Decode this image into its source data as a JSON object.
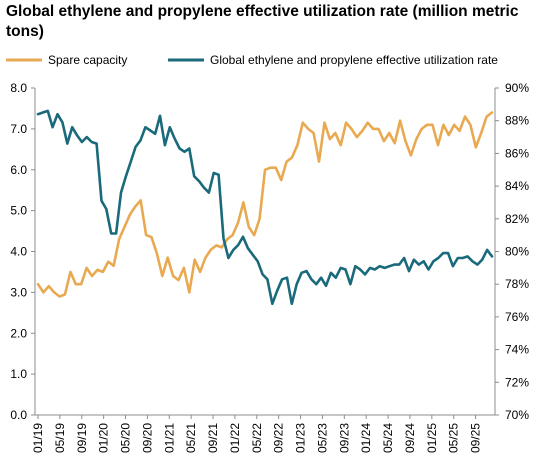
{
  "chart_data": {
    "type": "line",
    "title": "Global ethylene and propylene effective utilization rate (million metric tons)",
    "x_tick_labels": [
      "01/19",
      "05/19",
      "09/19",
      "01/20",
      "05/20",
      "09/20",
      "01/21",
      "05/21",
      "09/21",
      "01/22",
      "05/22",
      "09/22",
      "01/23",
      "05/23",
      "09/23",
      "01/24",
      "05/24",
      "09/24",
      "01/25",
      "05/25",
      "09/25"
    ],
    "x_start": "2019-01",
    "y_left": {
      "ylim": [
        0,
        8
      ],
      "ticks": [
        "0.0",
        "1.0",
        "2.0",
        "3.0",
        "4.0",
        "5.0",
        "6.0",
        "7.0",
        "8.0"
      ]
    },
    "y_right": {
      "ylim": [
        70,
        90
      ],
      "ticks": [
        "70%",
        "72%",
        "74%",
        "76%",
        "78%",
        "80%",
        "82%",
        "84%",
        "86%",
        "88%",
        "90%"
      ]
    },
    "series": [
      {
        "name": "Spare capacity",
        "axis": "left",
        "color": "#E8A950",
        "values": [
          3.2,
          3.0,
          3.15,
          3.0,
          2.9,
          2.95,
          3.5,
          3.2,
          3.2,
          3.6,
          3.4,
          3.55,
          3.5,
          3.75,
          3.65,
          4.3,
          4.6,
          4.9,
          5.1,
          5.25,
          4.4,
          4.35,
          3.95,
          3.4,
          3.85,
          3.4,
          3.3,
          3.6,
          3.0,
          3.8,
          3.5,
          3.85,
          4.05,
          4.15,
          4.1,
          4.3,
          4.4,
          4.7,
          5.2,
          4.6,
          4.4,
          4.8,
          6.0,
          6.05,
          6.05,
          5.75,
          6.2,
          6.3,
          6.6,
          7.15,
          7.0,
          6.9,
          6.2,
          7.15,
          6.75,
          6.9,
          6.6,
          7.15,
          7.0,
          6.8,
          6.95,
          7.15,
          7.0,
          7.0,
          6.7,
          6.9,
          6.65,
          7.2,
          6.7,
          6.35,
          6.75,
          7.0,
          7.1,
          7.1,
          6.6,
          7.1,
          6.85,
          7.1,
          6.95,
          7.3,
          7.1,
          6.55,
          6.9,
          7.3,
          7.4
        ]
      },
      {
        "name": "Global ethylene and propylene effective utilization rate",
        "axis": "right",
        "color": "#1A6A7B",
        "values": [
          88.4,
          88.5,
          88.6,
          87.6,
          88.4,
          87.9,
          86.6,
          87.6,
          87.1,
          86.7,
          87.0,
          86.7,
          86.6,
          83.1,
          82.6,
          81.1,
          81.1,
          83.6,
          84.6,
          85.5,
          86.4,
          86.8,
          87.6,
          87.4,
          87.2,
          88.3,
          86.5,
          87.6,
          86.9,
          86.3,
          86.1,
          86.3,
          84.6,
          84.3,
          83.9,
          83.6,
          84.8,
          84.7,
          80.8,
          79.6,
          80.1,
          80.4,
          80.9,
          80.2,
          79.8,
          79.4,
          78.6,
          78.3,
          76.8,
          77.6,
          78.3,
          78.4,
          76.8,
          78.0,
          78.7,
          78.8,
          78.3,
          78.0,
          78.4,
          77.9,
          78.7,
          78.4,
          79.0,
          78.9,
          78.0,
          79.1,
          78.9,
          78.6,
          79.0,
          78.9,
          79.1,
          79.0,
          79.1,
          79.2,
          79.2,
          79.6,
          78.8,
          79.5,
          79.2,
          79.4,
          78.9,
          79.4,
          79.6,
          79.9,
          79.9,
          79.1,
          79.6,
          79.6,
          79.7,
          79.4,
          79.2,
          79.5,
          80.1,
          79.7
        ]
      }
    ],
    "grid": false,
    "legend_position": "top"
  }
}
